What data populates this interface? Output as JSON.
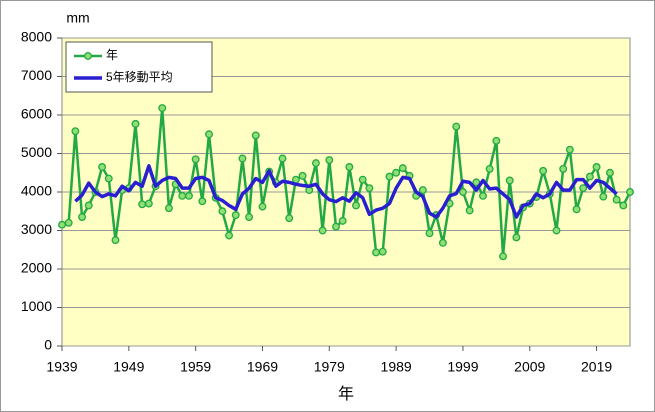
{
  "chart_data": {
    "type": "line",
    "y_unit_label": "mm",
    "x_axis_label": "年",
    "x": [
      1939,
      1940,
      1941,
      1942,
      1943,
      1944,
      1945,
      1946,
      1947,
      1948,
      1949,
      1950,
      1951,
      1952,
      1953,
      1954,
      1955,
      1956,
      1957,
      1958,
      1959,
      1960,
      1961,
      1962,
      1963,
      1964,
      1965,
      1966,
      1967,
      1968,
      1969,
      1970,
      1971,
      1972,
      1973,
      1974,
      1975,
      1976,
      1977,
      1978,
      1979,
      1980,
      1981,
      1982,
      1983,
      1984,
      1985,
      1986,
      1987,
      1988,
      1989,
      1990,
      1991,
      1992,
      1993,
      1994,
      1995,
      1996,
      1997,
      1998,
      1999,
      2000,
      2001,
      2002,
      2003,
      2004,
      2005,
      2006,
      2007,
      2008,
      2009,
      2010,
      2011,
      2012,
      2013,
      2014,
      2015,
      2016,
      2017,
      2018,
      2019,
      2020,
      2021,
      2022,
      2023,
      2024
    ],
    "series": [
      {
        "name": "年",
        "color": "#22a845",
        "marker": "circle",
        "marker_color": "#8fe070",
        "values": [
          3150,
          3200,
          5580,
          3350,
          3650,
          4000,
          4650,
          4350,
          2750,
          4050,
          4100,
          5770,
          3680,
          3700,
          4150,
          6180,
          3580,
          4200,
          3900,
          3900,
          4850,
          3760,
          5500,
          3850,
          3500,
          2870,
          3400,
          4870,
          3350,
          5470,
          3620,
          4530,
          4250,
          4870,
          3320,
          4320,
          4420,
          4050,
          4750,
          3000,
          4830,
          3100,
          3250,
          4650,
          3650,
          4320,
          4100,
          2430,
          2450,
          4400,
          4500,
          4620,
          4420,
          3900,
          4050,
          2930,
          3400,
          2680,
          3700,
          5700,
          4000,
          3520,
          4250,
          3900,
          4600,
          5330,
          2330,
          4300,
          2820,
          3600,
          3700,
          3870,
          4550,
          3950,
          3000,
          4600,
          5100,
          3550,
          4100,
          4400,
          4650,
          3880,
          4500,
          3800,
          3650,
          4000
        ]
      },
      {
        "name": "5年移動平均",
        "color": "#2a1fd0",
        "values": [
          null,
          null,
          3760,
          3920,
          4230,
          4000,
          3880,
          3950,
          3900,
          4150,
          4030,
          4250,
          4150,
          4680,
          4150,
          4300,
          4380,
          4350,
          4100,
          4100,
          4350,
          4380,
          4300,
          3850,
          3780,
          3650,
          3550,
          3950,
          4100,
          4350,
          4250,
          4550,
          4150,
          4280,
          4250,
          4200,
          4170,
          4150,
          4200,
          3950,
          3800,
          3750,
          3850,
          3760,
          3980,
          3850,
          3420,
          3530,
          3580,
          3700,
          4100,
          4380,
          4350,
          4000,
          3880,
          3450,
          3350,
          3580,
          3900,
          3960,
          4280,
          4250,
          4050,
          4300,
          4080,
          4100,
          3950,
          3800,
          3350,
          3650,
          3700,
          3950,
          3850,
          3950,
          4250,
          4050,
          4050,
          4320,
          4320,
          4100,
          4300,
          4250,
          4100,
          3950,
          null,
          null
        ]
      }
    ],
    "xlim": [
      1939,
      2024
    ],
    "xticks": [
      1939,
      1949,
      1959,
      1969,
      1979,
      1989,
      1999,
      2009,
      2019
    ],
    "ylim": [
      0,
      8000
    ],
    "yticks": [
      0,
      1000,
      2000,
      3000,
      4000,
      5000,
      6000,
      7000,
      8000
    ],
    "grid": true,
    "legend": "upper left"
  }
}
